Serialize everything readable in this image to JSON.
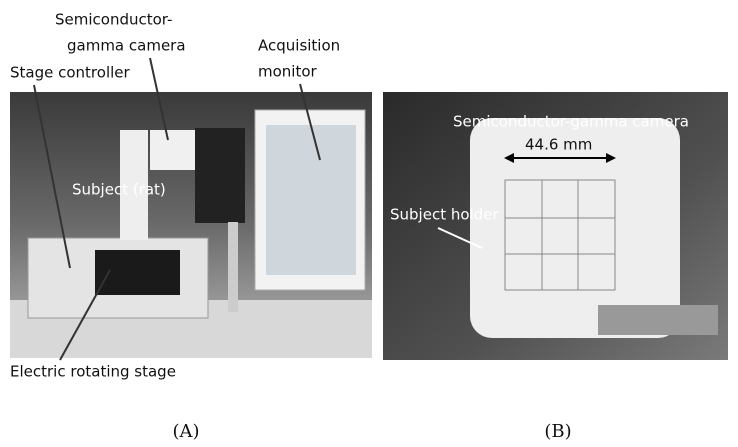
{
  "panels": [
    {
      "label": "(A)",
      "annotations": {
        "camera": [
          "Semiconductor-",
          "gamma camera"
        ],
        "controller": "Stage controller",
        "monitor": [
          "Acquisition",
          "monitor"
        ],
        "subject": "Subject (rat)",
        "stage": "Electric rotating stage"
      }
    },
    {
      "label": "(B)",
      "annotations": {
        "camera": "Semiconductor-gamma camera",
        "dimension": "44.6 mm",
        "holder": "Subject holder"
      }
    }
  ]
}
